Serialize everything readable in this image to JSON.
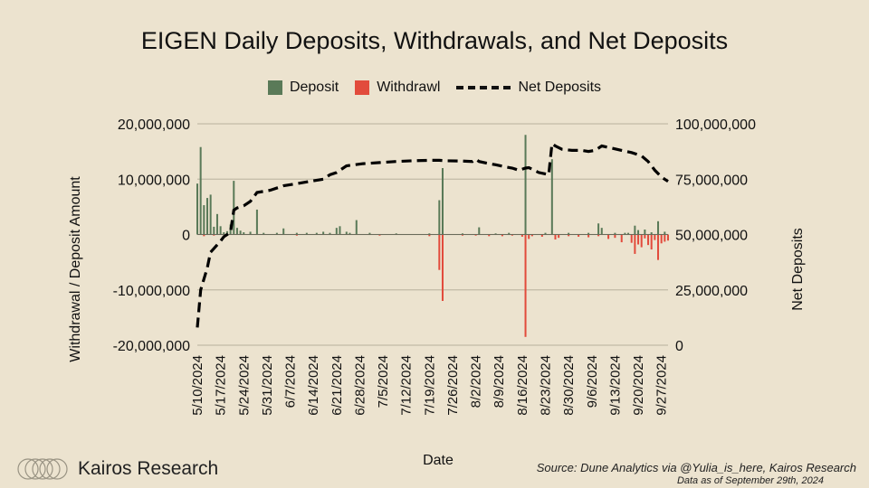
{
  "title": "EIGEN Daily Deposits, Withdrawals, and Net Deposits",
  "legend": {
    "deposit": "Deposit",
    "withdrawal": "Withdrawl",
    "net": "Net Deposits"
  },
  "footer": {
    "brand": "Kairos Research",
    "source": "Source: Dune Analytics via @Yulia_is_here, Kairos Research",
    "data_as_of": "Data as of September 29th, 2024"
  },
  "colors": {
    "deposit": "#5a7a58",
    "withdrawal": "#e24b3c",
    "net": "#000000",
    "background": "#ece3cf",
    "grid": "#c2baa6"
  },
  "chart_data": {
    "type": "bar",
    "title": "EIGEN Daily Deposits, Withdrawals, and Net Deposits",
    "xlabel": "Date",
    "ylabel": "Withdrawal / Deposit Amount",
    "y2label": "Net Deposits",
    "ylim": [
      -20000000,
      20000000
    ],
    "y2lim": [
      0,
      100000000
    ],
    "yticks": [
      "20,000,000",
      "10,000,000",
      "0",
      "-10,000,000",
      "-20,000,000"
    ],
    "y2ticks": [
      "100,000,000",
      "75,000,000",
      "50,000,000",
      "25,000,000",
      "0"
    ],
    "x_tick_labels": [
      "5/10/2024",
      "5/17/2024",
      "5/24/2024",
      "5/31/2024",
      "6/7/2024",
      "6/14/2024",
      "6/21/2024",
      "6/28/2024",
      "7/5/2024",
      "7/12/2024",
      "7/19/2024",
      "7/26/2024",
      "8/2/2024",
      "8/9/2024",
      "8/16/2024",
      "8/23/2024",
      "8/30/2024",
      "9/6/2024",
      "9/13/2024",
      "9/20/2024",
      "9/27/2024"
    ],
    "x_tick_day_index": [
      0,
      7,
      14,
      21,
      28,
      35,
      42,
      49,
      56,
      63,
      70,
      77,
      84,
      91,
      98,
      105,
      112,
      119,
      126,
      133,
      140
    ],
    "num_days": 143,
    "series": [
      {
        "name": "Deposit",
        "type": "bar",
        "points": [
          [
            0,
            9200000
          ],
          [
            1,
            15800000
          ],
          [
            2,
            5300000
          ],
          [
            3,
            6600000
          ],
          [
            4,
            7200000
          ],
          [
            5,
            1400000
          ],
          [
            6,
            3700000
          ],
          [
            7,
            1500000
          ],
          [
            8,
            400000
          ],
          [
            9,
            600000
          ],
          [
            10,
            1800000
          ],
          [
            11,
            9700000
          ],
          [
            12,
            1200000
          ],
          [
            13,
            700000
          ],
          [
            14,
            400000
          ],
          [
            16,
            500000
          ],
          [
            18,
            4500000
          ],
          [
            20,
            300000
          ],
          [
            24,
            300000
          ],
          [
            26,
            1100000
          ],
          [
            30,
            300000
          ],
          [
            33,
            300000
          ],
          [
            36,
            300000
          ],
          [
            38,
            500000
          ],
          [
            40,
            300000
          ],
          [
            42,
            1200000
          ],
          [
            43,
            1500000
          ],
          [
            45,
            500000
          ],
          [
            46,
            300000
          ],
          [
            48,
            2600000
          ],
          [
            52,
            300000
          ],
          [
            60,
            200000
          ],
          [
            70,
            200000
          ],
          [
            73,
            6200000
          ],
          [
            74,
            12000000
          ],
          [
            80,
            200000
          ],
          [
            85,
            1300000
          ],
          [
            90,
            200000
          ],
          [
            94,
            300000
          ],
          [
            99,
            18000000
          ],
          [
            105,
            300000
          ],
          [
            107,
            13600000
          ],
          [
            112,
            300000
          ],
          [
            118,
            300000
          ],
          [
            121,
            2000000
          ],
          [
            122,
            1200000
          ],
          [
            126,
            300000
          ],
          [
            129,
            300000
          ],
          [
            130,
            300000
          ],
          [
            132,
            1600000
          ],
          [
            133,
            800000
          ],
          [
            135,
            900000
          ],
          [
            137,
            400000
          ],
          [
            139,
            2400000
          ],
          [
            141,
            500000
          ]
        ]
      },
      {
        "name": "Withdrawl",
        "type": "bar",
        "points": [
          [
            2,
            -300000
          ],
          [
            5,
            -200000
          ],
          [
            30,
            -200000
          ],
          [
            55,
            -200000
          ],
          [
            70,
            -300000
          ],
          [
            73,
            -6400000
          ],
          [
            74,
            -12000000
          ],
          [
            80,
            -200000
          ],
          [
            84,
            -200000
          ],
          [
            88,
            -300000
          ],
          [
            92,
            -300000
          ],
          [
            95,
            -200000
          ],
          [
            98,
            -400000
          ],
          [
            99,
            -18500000
          ],
          [
            100,
            -800000
          ],
          [
            101,
            -300000
          ],
          [
            104,
            -400000
          ],
          [
            108,
            -900000
          ],
          [
            109,
            -600000
          ],
          [
            112,
            -300000
          ],
          [
            115,
            -400000
          ],
          [
            118,
            -500000
          ],
          [
            121,
            -300000
          ],
          [
            124,
            -800000
          ],
          [
            126,
            -600000
          ],
          [
            128,
            -1400000
          ],
          [
            131,
            -1500000
          ],
          [
            132,
            -3500000
          ],
          [
            133,
            -1800000
          ],
          [
            134,
            -2300000
          ],
          [
            135,
            -700000
          ],
          [
            136,
            -1900000
          ],
          [
            137,
            -2700000
          ],
          [
            138,
            -1000000
          ],
          [
            139,
            -4600000
          ],
          [
            140,
            -1600000
          ],
          [
            141,
            -1300000
          ],
          [
            142,
            -1100000
          ]
        ]
      },
      {
        "name": "Net Deposits",
        "type": "line",
        "style": "dashed",
        "axis": "secondary",
        "points": [
          [
            0,
            8000000
          ],
          [
            1,
            25000000
          ],
          [
            3,
            35000000
          ],
          [
            4,
            42000000
          ],
          [
            7,
            47000000
          ],
          [
            8,
            49000000
          ],
          [
            10,
            51000000
          ],
          [
            11,
            61000000
          ],
          [
            12,
            62000000
          ],
          [
            14,
            63000000
          ],
          [
            16,
            65000000
          ],
          [
            18,
            69000000
          ],
          [
            22,
            70000000
          ],
          [
            26,
            72000000
          ],
          [
            30,
            73000000
          ],
          [
            34,
            74000000
          ],
          [
            38,
            75000000
          ],
          [
            40,
            77000000
          ],
          [
            42,
            78000000
          ],
          [
            45,
            81000000
          ],
          [
            50,
            82000000
          ],
          [
            55,
            82500000
          ],
          [
            60,
            83000000
          ],
          [
            65,
            83300000
          ],
          [
            70,
            83500000
          ],
          [
            73,
            83500000
          ],
          [
            75,
            83300000
          ],
          [
            80,
            83200000
          ],
          [
            83,
            83000000
          ],
          [
            84,
            84000000
          ],
          [
            85,
            83000000
          ],
          [
            88,
            82000000
          ],
          [
            90,
            81500000
          ],
          [
            93,
            80500000
          ],
          [
            95,
            80000000
          ],
          [
            97,
            79000000
          ],
          [
            99,
            80000000
          ],
          [
            100,
            80200000
          ],
          [
            103,
            78000000
          ],
          [
            106,
            77000000
          ],
          [
            107,
            91000000
          ],
          [
            108,
            90000000
          ],
          [
            110,
            88500000
          ],
          [
            113,
            88000000
          ],
          [
            116,
            88000000
          ],
          [
            118,
            87500000
          ],
          [
            120,
            88000000
          ],
          [
            122,
            90000000
          ],
          [
            125,
            89000000
          ],
          [
            128,
            88000000
          ],
          [
            131,
            87000000
          ],
          [
            134,
            85500000
          ],
          [
            136,
            83000000
          ],
          [
            138,
            79000000
          ],
          [
            140,
            76000000
          ],
          [
            141,
            75000000
          ],
          [
            142,
            74000000
          ]
        ]
      }
    ]
  }
}
